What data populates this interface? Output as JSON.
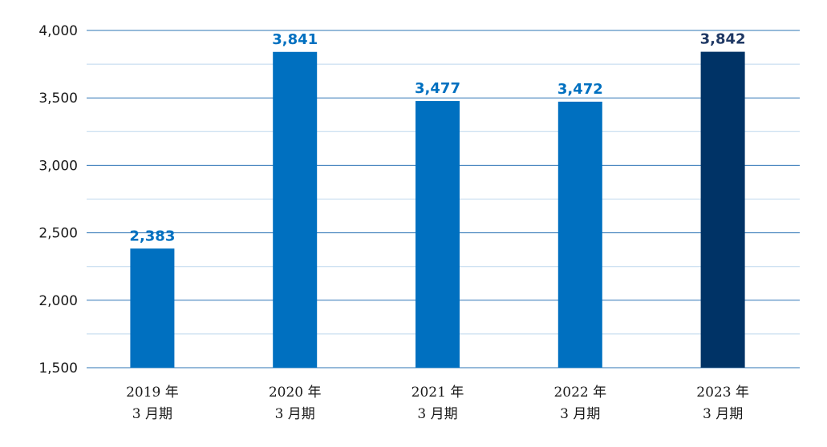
{
  "chart_data": {
    "type": "bar",
    "categories": [
      [
        "2019 年",
        "3 月期"
      ],
      [
        "2020 年",
        "3 月期"
      ],
      [
        "2021 年",
        "3 月期"
      ],
      [
        "2022 年",
        "3 月期"
      ],
      [
        "2023 年",
        "3 月期"
      ]
    ],
    "values": [
      2383,
      3841,
      3477,
      3472,
      3842
    ],
    "data_labels": [
      "2,383",
      "3,841",
      "3,477",
      "3,472",
      "3,842"
    ],
    "ylim": [
      1500,
      4000
    ],
    "yticks": [
      1500,
      2000,
      2500,
      3000,
      3500,
      4000
    ],
    "ytick_labels": [
      "1,500",
      "2,000",
      "2,500",
      "3,000",
      "3,500",
      "4,000"
    ],
    "minor_gridlines": [
      1750,
      2250,
      2750,
      3250,
      3750
    ],
    "grid": true,
    "legend": "none",
    "colors": {
      "bar": "#0070C0",
      "highlight_bar": "#003366",
      "label": "#0070C0",
      "highlight_label": "#1F3864",
      "major_grid": "#2E75B6",
      "minor_grid": "#BDD7EE"
    },
    "highlight_index": 4
  }
}
